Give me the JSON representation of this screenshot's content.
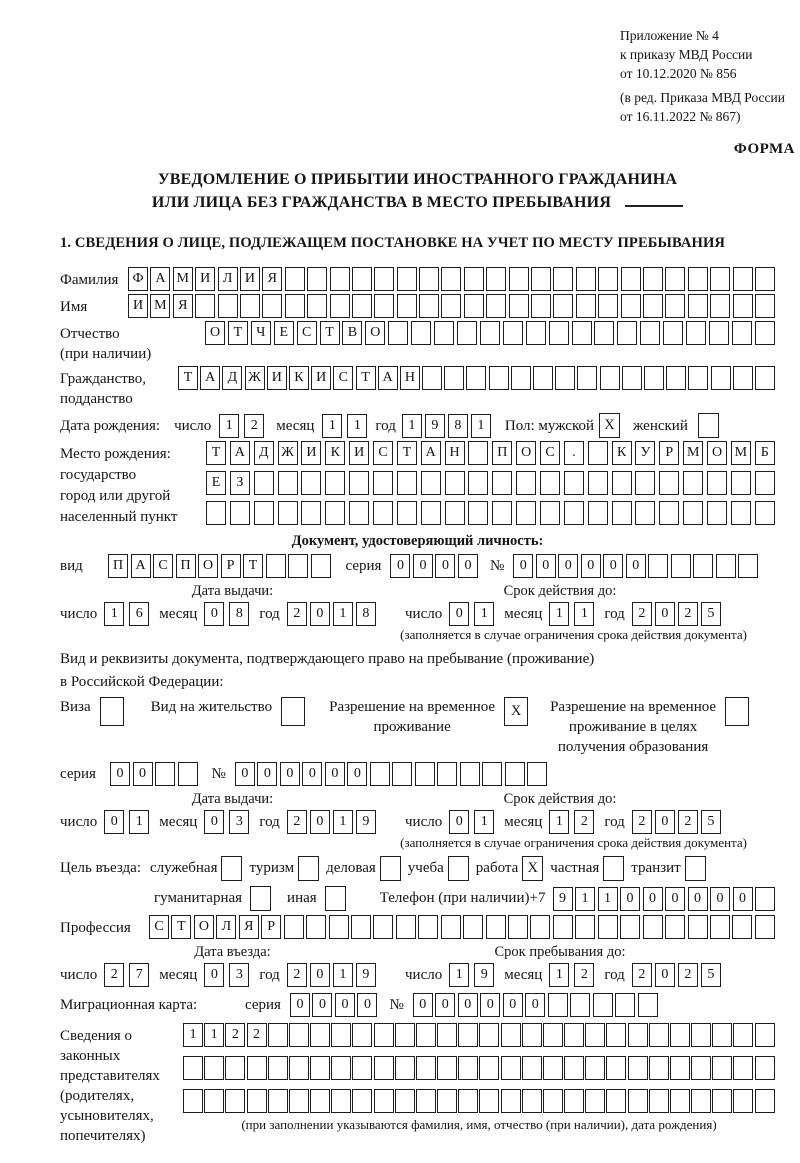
{
  "header": {
    "appendix_line1": "Приложение № 4",
    "appendix_line2": "к приказу МВД России",
    "appendix_line3": "от 10.12.2020 № 856",
    "edition_line1": "(в ред. Приказа МВД России",
    "edition_line2": "от 16.11.2022 № 867)",
    "form_label": "ФОРМА"
  },
  "title": {
    "line1": "УВЕДОМЛЕНИЕ О ПРИБЫТИИ ИНОСТРАННОГО ГРАЖДАНИНА",
    "line2": "ИЛИ ЛИЦА БЕЗ ГРАЖДАНСТВА В МЕСТО ПРЕБЫВАНИЯ"
  },
  "section1_heading": "1. СВЕДЕНИЯ О ЛИЦЕ, ПОДЛЕЖАЩЕМ ПОСТАНОВКЕ НА УЧЕТ ПО МЕСТУ ПРЕБЫВАНИЯ",
  "shared": {
    "day_label": "число",
    "month_label": "месяц",
    "year_label": "год",
    "series_label": "серия",
    "number_sign": "№"
  },
  "person": {
    "surname": {
      "label": "Фамилия",
      "value": "ФАМИЛИЯ"
    },
    "given_name": {
      "label": "Имя",
      "value": "ИМЯ"
    },
    "patronymic": {
      "label_line1": "Отчество",
      "label_line2": "(при наличии)",
      "value": "ОТЧЕСТВО"
    },
    "citizenship": {
      "label_line1": "Гражданство,",
      "label_line2": "подданство",
      "value": "ТАДЖИКИСТАН"
    },
    "birth_date": {
      "label": "Дата рождения:",
      "day": "12",
      "month": "11",
      "year": "1981"
    },
    "gender": {
      "label": "Пол: мужской",
      "male_mark": "X",
      "female_label": "женский",
      "female_mark": ""
    },
    "birth_place": {
      "label_line1": "Место рождения:",
      "label_line2": "государство",
      "label_line3": "город или другой",
      "label_line4": "населенный пункт",
      "row1": "ТАДЖИКИСТАН ПОС. КУРМОМБ",
      "row2": "ЕЗ",
      "row3": ""
    }
  },
  "identity_doc": {
    "heading": "Документ, удостоверяющий личность:",
    "kind_label": "вид",
    "kind": "ПАСПОРТ",
    "series": "0000",
    "number": "000000",
    "issue_heading": "Дата выдачи:",
    "issue_day": "16",
    "issue_month": "08",
    "issue_year": "2018",
    "expiry_heading": "Срок действия до:",
    "expiry_day": "01",
    "expiry_month": "11",
    "expiry_year": "2025",
    "note": "(заполняется в случае ограничения срока действия документа)"
  },
  "residence_doc": {
    "intro_line1": "Вид и реквизиты документа, подтверждающего право на пребывание (проживание)",
    "intro_line2": "в Российской Федерации:",
    "visa_label": "Виза",
    "visa_mark": "",
    "residence_permit_label": "Вид на жительство",
    "residence_permit_mark": "",
    "temp_permit_label_line1": "Разрешение на временное",
    "temp_permit_label_line2": "проживание",
    "temp_permit_mark": "X",
    "edu_permit_label_line1": "Разрешение на временное",
    "edu_permit_label_line2": "проживание в целях",
    "edu_permit_label_line3": "получения образования",
    "edu_permit_mark": "",
    "series": "00",
    "number": "000000",
    "issue_heading": "Дата выдачи:",
    "issue_day": "01",
    "issue_month": "03",
    "issue_year": "2019",
    "expiry_heading": "Срок действия до:",
    "expiry_day": "01",
    "expiry_month": "12",
    "expiry_year": "2025",
    "note": "(заполняется в случае ограничения срока действия документа)"
  },
  "visit": {
    "purpose_label": "Цель въезда:",
    "p_official": "служебная",
    "p_official_mark": "",
    "p_tourism": "туризм",
    "p_tourism_mark": "",
    "p_business": "деловая",
    "p_business_mark": "",
    "p_study": "учеба",
    "p_study_mark": "",
    "p_work": "работа",
    "p_work_mark": "X",
    "p_private": "частная",
    "p_private_mark": "",
    "p_transit": "транзит",
    "p_transit_mark": "",
    "p_humanitarian": "гуманитарная",
    "p_humanitarian_mark": "",
    "p_other": "иная",
    "p_other_mark": "",
    "phone_label": "Телефон (при наличии)",
    "phone_prefix": "+7",
    "phone": "911000000",
    "profession_label": "Профессия",
    "profession": "СТОЛЯР",
    "entry_heading": "Дата въезда:",
    "entry_day": "27",
    "entry_month": "03",
    "entry_year": "2019",
    "stay_heading": "Срок пребывания до:",
    "stay_day": "19",
    "stay_month": "12",
    "stay_year": "2025",
    "migration_card_label": "Миграционная карта:",
    "migration_series": "0000",
    "migration_number": "000000"
  },
  "representatives": {
    "label_line1": "Сведения о",
    "label_line2": "законных",
    "label_line3": "представителях",
    "label_line4": "(родителях,",
    "label_line5": "усыновителях,",
    "label_line6": "попечителях)",
    "row1": "1122",
    "row2": "",
    "row3": "",
    "note": "(при заполнении указываются фамилия, имя, отчество (при наличии), дата рождения)"
  }
}
